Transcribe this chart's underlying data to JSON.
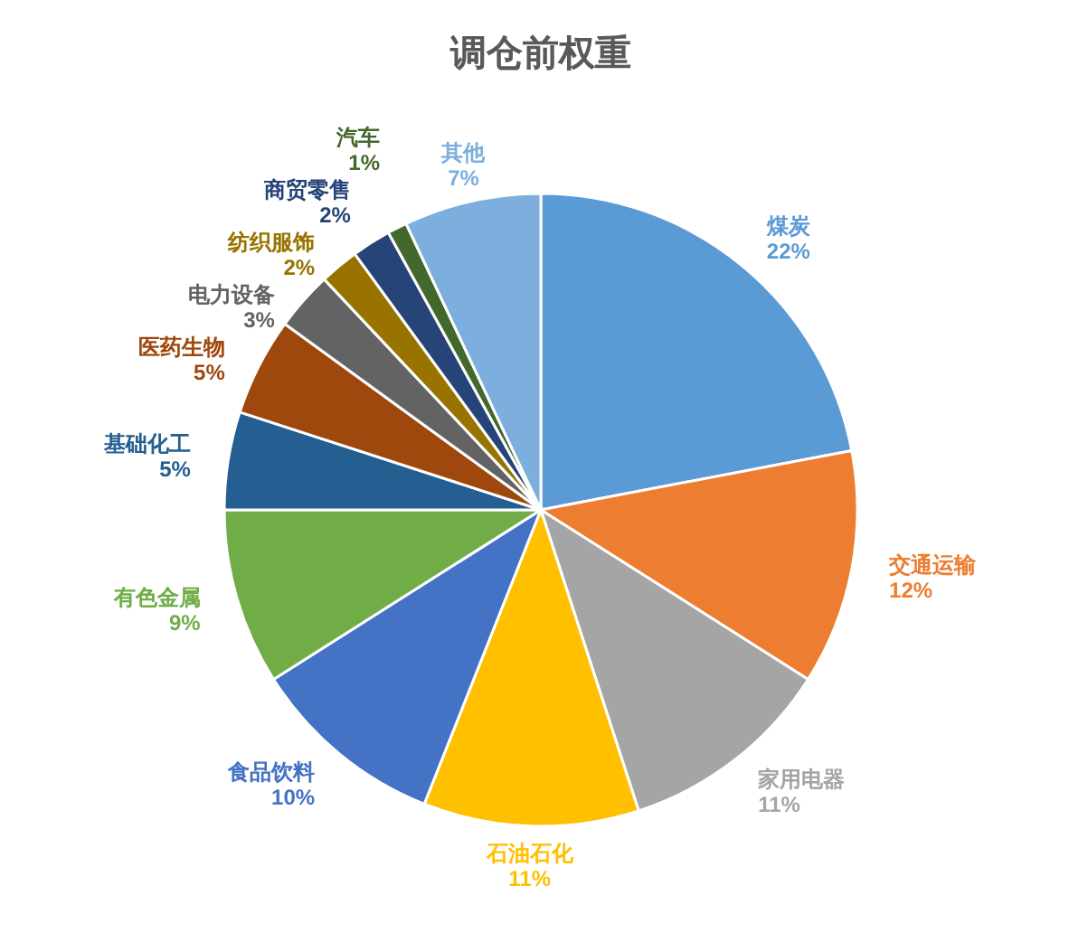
{
  "chart_data": {
    "type": "pie",
    "title": "调仓前权重",
    "categories": [
      "煤炭",
      "交通运输",
      "家用电器",
      "石油石化",
      "食品饮料",
      "有色金属",
      "基础化工",
      "医药生物",
      "电力设备",
      "纺织服饰",
      "商贸零售",
      "汽车",
      "其他"
    ],
    "values": [
      22,
      12,
      11,
      11,
      10,
      9,
      5,
      5,
      3,
      2,
      2,
      1,
      7
    ],
    "colors": [
      "#5b9bd5",
      "#ed7d31",
      "#a5a5a5",
      "#ffc000",
      "#4472c4",
      "#70ad47",
      "#255e91",
      "#9e480e",
      "#636363",
      "#997300",
      "#264478",
      "#43682b",
      "#7cafdd"
    ],
    "value_labels": [
      "22%",
      "12%",
      "11%",
      "11%",
      "10%",
      "9%",
      "5%",
      "5%",
      "3%",
      "2%",
      "2%",
      "1%",
      "7%"
    ]
  }
}
